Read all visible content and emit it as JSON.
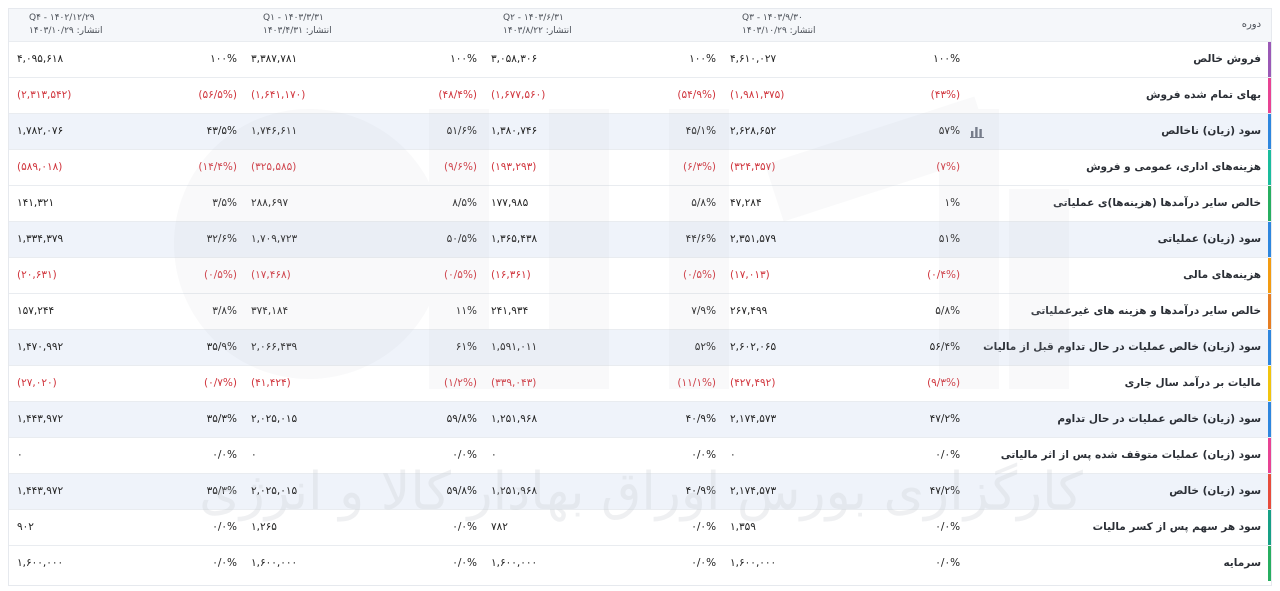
{
  "header": {
    "label": "دوره",
    "periods": [
      {
        "name": "Q۳ - ۱۴۰۳/۹/۳۰",
        "published": "انتشار: ۱۴۰۳/۱۰/۲۹"
      },
      {
        "name": "Q۲ - ۱۴۰۳/۶/۳۱",
        "published": "انتشار: ۱۴۰۳/۸/۲۲"
      },
      {
        "name": "Q۱ - ۱۴۰۳/۳/۳۱",
        "published": "انتشار: ۱۴۰۳/۴/۳۱"
      },
      {
        "name": "Q۴ - ۱۴۰۲/۱۲/۲۹",
        "published": "انتشار: ۱۴۰۳/۱۰/۲۹"
      }
    ]
  },
  "rows": [
    {
      "label": "فروش خالص",
      "color": "#9b59b6",
      "neg": false,
      "cells": [
        [
          "۴,۶۱۰,۰۲۷",
          "۱۰۰%"
        ],
        [
          "۳,۰۵۸,۳۰۶",
          "۱۰۰%"
        ],
        [
          "۳,۳۸۷,۷۸۱",
          "۱۰۰%"
        ],
        [
          "۴,۰۹۵,۶۱۸",
          "۱۰۰%"
        ]
      ]
    },
    {
      "label": "بهای تمام شده فروش",
      "color": "#e84393",
      "neg": true,
      "cells": [
        [
          "(۱,۹۸۱,۳۷۵)",
          "(۴۳%)"
        ],
        [
          "(۱,۶۷۷,۵۶۰)",
          "(۵۴/۹%)"
        ],
        [
          "(۱,۶۴۱,۱۷۰)",
          "(۴۸/۴%)"
        ],
        [
          "(۲,۳۱۳,۵۴۲)",
          "(۵۶/۵%)"
        ]
      ]
    },
    {
      "label": "سود (زیان) ناخالص",
      "color": "#2e86de",
      "neg": false,
      "icon": true,
      "cells": [
        [
          "۲,۶۲۸,۶۵۲",
          "۵۷%"
        ],
        [
          "۱,۳۸۰,۷۴۶",
          "۴۵/۱%"
        ],
        [
          "۱,۷۴۶,۶۱۱",
          "۵۱/۶%"
        ],
        [
          "۱,۷۸۲,۰۷۶",
          "۴۳/۵%"
        ]
      ]
    },
    {
      "label": "هزینه‌های اداری، عمومی و فروش",
      "color": "#1abc9c",
      "neg": true,
      "cells": [
        [
          "(۳۲۴,۳۵۷)",
          "(۷%)"
        ],
        [
          "(۱۹۳,۲۹۳)",
          "(۶/۳%)"
        ],
        [
          "(۳۲۵,۵۸۵)",
          "(۹/۶%)"
        ],
        [
          "(۵۸۹,۰۱۸)",
          "(۱۴/۴%)"
        ]
      ]
    },
    {
      "label": "خالص سایر درآمدها (هزینه‌ها)ی عملیاتی",
      "color": "#27ae60",
      "neg": false,
      "cells": [
        [
          "۴۷,۲۸۴",
          "۱%"
        ],
        [
          "۱۷۷,۹۸۵",
          "۵/۸%"
        ],
        [
          "۲۸۸,۶۹۷",
          "۸/۵%"
        ],
        [
          "۱۴۱,۳۲۱",
          "۳/۵%"
        ]
      ]
    },
    {
      "label": "سود (زیان) عملیاتی",
      "color": "#2e86de",
      "neg": false,
      "cells": [
        [
          "۲,۳۵۱,۵۷۹",
          "۵۱%"
        ],
        [
          "۱,۳۶۵,۴۳۸",
          "۴۴/۶%"
        ],
        [
          "۱,۷۰۹,۷۲۳",
          "۵۰/۵%"
        ],
        [
          "۱,۳۳۴,۳۷۹",
          "۳۲/۶%"
        ]
      ]
    },
    {
      "label": "هزینه‌های مالی",
      "color": "#f39c12",
      "neg": true,
      "cells": [
        [
          "(۱۷,۰۱۳)",
          "(۰/۴%)"
        ],
        [
          "(۱۶,۳۶۱)",
          "(۰/۵%)"
        ],
        [
          "(۱۷,۴۶۸)",
          "(۰/۵%)"
        ],
        [
          "(۲۰,۶۳۱)",
          "(۰/۵%)"
        ]
      ]
    },
    {
      "label": "خالص سایر درآمدها و هزینه های غیرعملیاتی",
      "color": "#e67e22",
      "neg": false,
      "cells": [
        [
          "۲۶۷,۴۹۹",
          "۵/۸%"
        ],
        [
          "۲۴۱,۹۳۴",
          "۷/۹%"
        ],
        [
          "۳۷۴,۱۸۴",
          "۱۱%"
        ],
        [
          "۱۵۷,۲۴۴",
          "۳/۸%"
        ]
      ]
    },
    {
      "label": "سود (زیان) خالص عملیات در حال تداوم قبل از مالیات",
      "color": "#2e86de",
      "neg": false,
      "cells": [
        [
          "۲,۶۰۲,۰۶۵",
          "۵۶/۴%"
        ],
        [
          "۱,۵۹۱,۰۱۱",
          "۵۲%"
        ],
        [
          "۲,۰۶۶,۴۳۹",
          "۶۱%"
        ],
        [
          "۱,۴۷۰,۹۹۲",
          "۳۵/۹%"
        ]
      ]
    },
    {
      "label": "مالیات بر درآمد سال جاری",
      "color": "#f1c40f",
      "neg": true,
      "cells": [
        [
          "(۴۲۷,۴۹۲)",
          "(۹/۳%)"
        ],
        [
          "(۳۳۹,۰۴۳)",
          "(۱۱/۱%)"
        ],
        [
          "(۴۱,۴۲۴)",
          "(۱/۲%)"
        ],
        [
          "(۲۷,۰۲۰)",
          "(۰/۷%)"
        ]
      ]
    },
    {
      "label": "سود (زیان) خالص عملیات در حال تداوم",
      "color": "#2e86de",
      "neg": false,
      "cells": [
        [
          "۲,۱۷۴,۵۷۳",
          "۴۷/۲%"
        ],
        [
          "۱,۲۵۱,۹۶۸",
          "۴۰/۹%"
        ],
        [
          "۲,۰۲۵,۰۱۵",
          "۵۹/۸%"
        ],
        [
          "۱,۴۴۳,۹۷۲",
          "۳۵/۳%"
        ]
      ]
    },
    {
      "label": "سود (زیان) عملیات متوقف شده پس از اثر مالیاتی",
      "color": "#e84393",
      "neg": false,
      "cells": [
        [
          "۰",
          "۰/۰%"
        ],
        [
          "۰",
          "۰/۰%"
        ],
        [
          "۰",
          "۰/۰%"
        ],
        [
          "۰",
          "۰/۰%"
        ]
      ]
    },
    {
      "label": "سود (زیان) خالص",
      "color": "#e74c3c",
      "neg": false,
      "cells": [
        [
          "۲,۱۷۴,۵۷۳",
          "۴۷/۲%"
        ],
        [
          "۱,۲۵۱,۹۶۸",
          "۴۰/۹%"
        ],
        [
          "۲,۰۲۵,۰۱۵",
          "۵۹/۸%"
        ],
        [
          "۱,۴۴۳,۹۷۲",
          "۳۵/۳%"
        ]
      ]
    },
    {
      "label": "سود هر سهم پس از کسر مالیات",
      "color": "#16a085",
      "neg": false,
      "cells": [
        [
          "۱,۳۵۹",
          "۰/۰%"
        ],
        [
          "۷۸۲",
          "۰/۰%"
        ],
        [
          "۱,۲۶۵",
          "۰/۰%"
        ],
        [
          "۹۰۲",
          "۰/۰%"
        ]
      ]
    },
    {
      "label": "سرمایه",
      "color": "#27ae60",
      "neg": false,
      "cells": [
        [
          "۱,۶۰۰,۰۰۰",
          "۰/۰%"
        ],
        [
          "۱,۶۰۰,۰۰۰",
          "۰/۰%"
        ],
        [
          "۱,۶۰۰,۰۰۰",
          "۰/۰%"
        ],
        [
          "۱,۶۰۰,۰۰۰",
          "۰/۰%"
        ]
      ]
    }
  ],
  "watermark_text": "کارگزاری بورس اوراق بهادار کالا و انرژی",
  "icons": {
    "row_chart": "bar-chart-icon"
  }
}
